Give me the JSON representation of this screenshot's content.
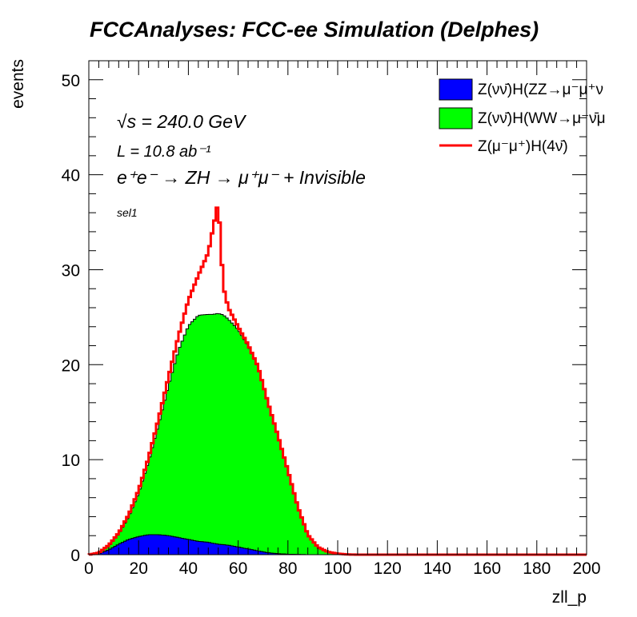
{
  "title": "FCCAnalyses: FCC-ee Simulation (Delphes)",
  "annotations": {
    "sqrt_s_symbol": "√s",
    "sqrt_s_value": " = 240.0 GeV",
    "lumi": "L = 10.8 ab⁻¹",
    "process": "e⁺e⁻ → ZH → μ⁺μ⁻ + Invisible",
    "selection": "sel1"
  },
  "legend": {
    "items": [
      {
        "label": "Z(νν̄)H(ZZ→μ⁻μ⁺ν",
        "kind": "fill",
        "color": "#0000ff"
      },
      {
        "label": "Z(νν̄)H(WW→μ⁻ν̄μ",
        "kind": "fill",
        "color": "#00ff00"
      },
      {
        "label": "Z(μ⁻μ⁺)H(4ν̄)",
        "kind": "line",
        "color": "#ff0000"
      }
    ]
  },
  "chart_data": {
    "type": "area",
    "title": "FCCAnalyses: FCC-ee Simulation (Delphes)",
    "xlabel": "zll_p",
    "ylabel": "events",
    "xlim": [
      0,
      200
    ],
    "ylim": [
      0,
      52
    ],
    "xticks": [
      0,
      20,
      40,
      60,
      80,
      100,
      120,
      140,
      160,
      180,
      200
    ],
    "yticks": [
      0,
      10,
      20,
      30,
      40,
      50
    ],
    "stacked": true,
    "x": [
      0,
      4,
      8,
      12,
      16,
      20,
      24,
      28,
      32,
      36,
      40,
      44,
      48,
      50,
      52,
      54,
      56,
      60,
      64,
      68,
      72,
      76,
      80,
      84,
      88,
      92,
      96,
      100,
      104,
      108,
      120,
      140,
      160,
      180,
      200
    ],
    "series": [
      {
        "name": "Z(νν̄)H(ZZ→μ⁻μ⁺ν",
        "color": "#0000ff",
        "values": [
          0,
          0.1,
          0.5,
          1.1,
          1.6,
          1.9,
          2.1,
          2.1,
          2.0,
          1.8,
          1.6,
          1.4,
          1.3,
          1.2,
          1.1,
          1.05,
          1.0,
          0.8,
          0.6,
          0.4,
          0.2,
          0.1,
          0.05,
          0.02,
          0,
          0,
          0,
          0,
          0,
          0,
          0,
          0,
          0,
          0,
          0
        ]
      },
      {
        "name": "Z(νν̄)H(WW→μ⁻ν̄μ",
        "color": "#00ff00",
        "values": [
          0,
          0.1,
          0.4,
          1.1,
          2.4,
          4.6,
          7.7,
          11.6,
          15.8,
          19.7,
          22.5,
          23.8,
          24.0,
          24.1,
          24.3,
          24.2,
          23.8,
          22.9,
          21.4,
          19.3,
          15.8,
          12.4,
          8.8,
          5.0,
          2.1,
          0.8,
          0.3,
          0.1,
          0.02,
          0,
          0,
          0,
          0,
          0,
          0
        ]
      },
      {
        "name": "Z(μ⁻μ⁺)H(4ν̄)",
        "color": "#ff0000",
        "values": [
          0,
          0,
          0.1,
          0.1,
          0.2,
          0.3,
          0.4,
          0.6,
          0.9,
          1.5,
          2.7,
          4.2,
          6.5,
          9.2,
          11.8,
          3.0,
          1.2,
          0.3,
          0.1,
          0.1,
          0,
          0,
          0,
          0,
          0,
          0,
          0,
          0,
          0,
          0,
          0,
          0,
          0,
          0,
          0
        ]
      }
    ]
  }
}
